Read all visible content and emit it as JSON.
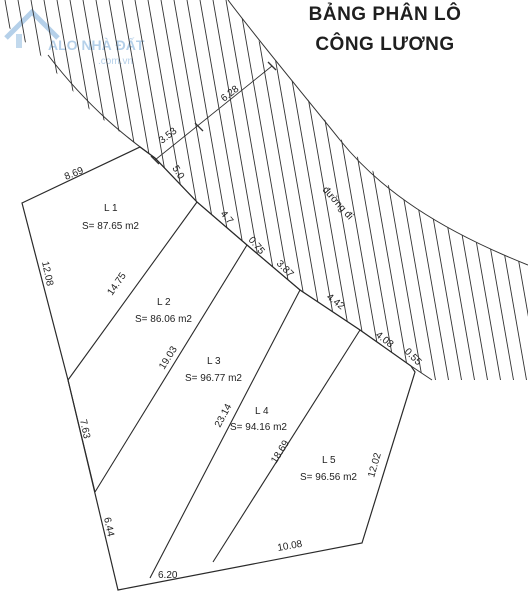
{
  "title": {
    "line1": "BẢNG PHÂN LÔ",
    "line2": "CÔNG LƯƠNG"
  },
  "watermark": {
    "brand": "ALO NHÀ ĐẤT",
    "domain": ".com.vn"
  },
  "road": {
    "label": "đường đi"
  },
  "dimensions": {
    "road_offset_a": "3.53",
    "road_offset_b": "6.28",
    "road_offset_c": "5.0",
    "top_left": "8.69",
    "frontage_1": "4.7",
    "frontage_2": "0.75",
    "frontage_3": "3.87",
    "frontage_4": "4.42",
    "frontage_5": "4.08",
    "frontage_6": "0.55",
    "left_1": "12.08",
    "left_2": "7.63",
    "left_3": "6.44",
    "div_1": "14.75",
    "div_2": "19.03",
    "div_3": "23.14",
    "div_4": "18.69",
    "right": "12.02",
    "bottom_1": "6.20",
    "bottom_2": "10.08"
  },
  "lots": [
    {
      "name": "L 1",
      "area": "S= 87.65 m2"
    },
    {
      "name": "L 2",
      "area": "S= 86.06 m2"
    },
    {
      "name": "L 3",
      "area": "S= 96.77 m2"
    },
    {
      "name": "L 4",
      "area": "S= 94.16 m2"
    },
    {
      "name": "L 5",
      "area": "S= 96.56 m2"
    }
  ]
}
